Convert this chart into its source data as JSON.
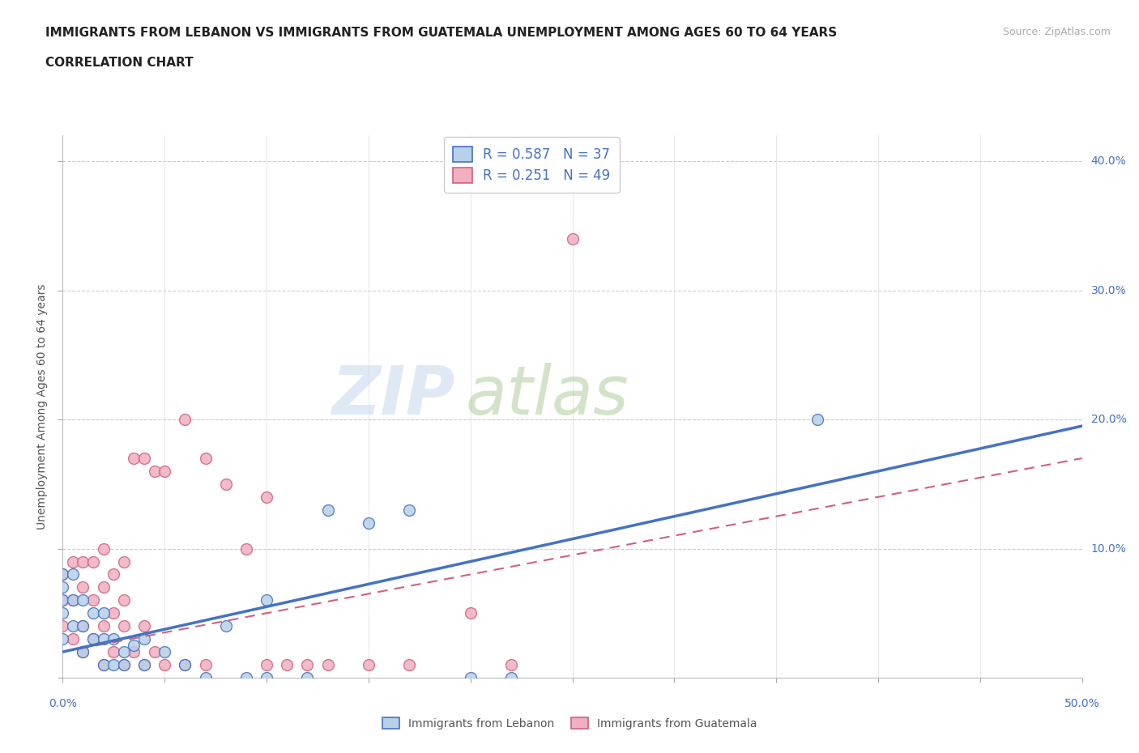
{
  "title_line1": "IMMIGRANTS FROM LEBANON VS IMMIGRANTS FROM GUATEMALA UNEMPLOYMENT AMONG AGES 60 TO 64 YEARS",
  "title_line2": "CORRELATION CHART",
  "source_text": "Source: ZipAtlas.com",
  "ylabel": "Unemployment Among Ages 60 to 64 years",
  "xlim": [
    0.0,
    0.5
  ],
  "ylim": [
    0.0,
    0.42
  ],
  "ytick_positions": [
    0.0,
    0.1,
    0.2,
    0.3,
    0.4
  ],
  "ytick_labels": [
    "",
    "10.0%",
    "20.0%",
    "30.0%",
    "40.0%"
  ],
  "xtick_positions": [
    0.0,
    0.05,
    0.1,
    0.15,
    0.2,
    0.25,
    0.3,
    0.35,
    0.4,
    0.45,
    0.5
  ],
  "color_lebanon_fill": "#b8d0e8",
  "color_lebanon_edge": "#4472c4",
  "color_guatemala_fill": "#f0b0c0",
  "color_guatemala_edge": "#d06080",
  "color_blue": "#4472c4",
  "color_pink_line": "#d06080",
  "color_grid": "#cccccc",
  "r_lebanon": 0.587,
  "n_lebanon": 37,
  "r_guatemala": 0.251,
  "n_guatemala": 49,
  "lebanon_x": [
    0.0,
    0.0,
    0.0,
    0.0,
    0.0,
    0.005,
    0.005,
    0.005,
    0.01,
    0.01,
    0.01,
    0.015,
    0.015,
    0.02,
    0.02,
    0.02,
    0.025,
    0.025,
    0.03,
    0.03,
    0.035,
    0.04,
    0.04,
    0.05,
    0.06,
    0.07,
    0.08,
    0.09,
    0.1,
    0.1,
    0.12,
    0.13,
    0.15,
    0.17,
    0.2,
    0.22,
    0.37
  ],
  "lebanon_y": [
    0.03,
    0.05,
    0.06,
    0.07,
    0.08,
    0.04,
    0.06,
    0.08,
    0.02,
    0.04,
    0.06,
    0.03,
    0.05,
    0.01,
    0.03,
    0.05,
    0.01,
    0.03,
    0.01,
    0.02,
    0.025,
    0.01,
    0.03,
    0.02,
    0.01,
    0.0,
    0.04,
    0.0,
    0.0,
    0.06,
    0.0,
    0.13,
    0.12,
    0.13,
    0.0,
    0.0,
    0.2
  ],
  "guatemala_x": [
    0.0,
    0.0,
    0.0,
    0.005,
    0.005,
    0.005,
    0.01,
    0.01,
    0.01,
    0.01,
    0.015,
    0.015,
    0.015,
    0.02,
    0.02,
    0.02,
    0.02,
    0.025,
    0.025,
    0.025,
    0.03,
    0.03,
    0.03,
    0.03,
    0.035,
    0.035,
    0.04,
    0.04,
    0.04,
    0.045,
    0.045,
    0.05,
    0.05,
    0.06,
    0.06,
    0.07,
    0.07,
    0.08,
    0.09,
    0.1,
    0.1,
    0.11,
    0.12,
    0.13,
    0.15,
    0.17,
    0.2,
    0.22,
    0.25
  ],
  "guatemala_y": [
    0.04,
    0.06,
    0.08,
    0.03,
    0.06,
    0.09,
    0.02,
    0.04,
    0.07,
    0.09,
    0.03,
    0.06,
    0.09,
    0.01,
    0.04,
    0.07,
    0.1,
    0.02,
    0.05,
    0.08,
    0.01,
    0.04,
    0.06,
    0.09,
    0.02,
    0.17,
    0.01,
    0.04,
    0.17,
    0.02,
    0.16,
    0.01,
    0.16,
    0.01,
    0.2,
    0.01,
    0.17,
    0.15,
    0.1,
    0.01,
    0.14,
    0.01,
    0.01,
    0.01,
    0.01,
    0.01,
    0.05,
    0.01,
    0.34
  ],
  "lebanon_trend_x": [
    0.0,
    0.5
  ],
  "lebanon_trend_y": [
    0.02,
    0.195
  ],
  "guatemala_trend_x": [
    0.0,
    0.5
  ],
  "guatemala_trend_y": [
    0.02,
    0.17
  ]
}
